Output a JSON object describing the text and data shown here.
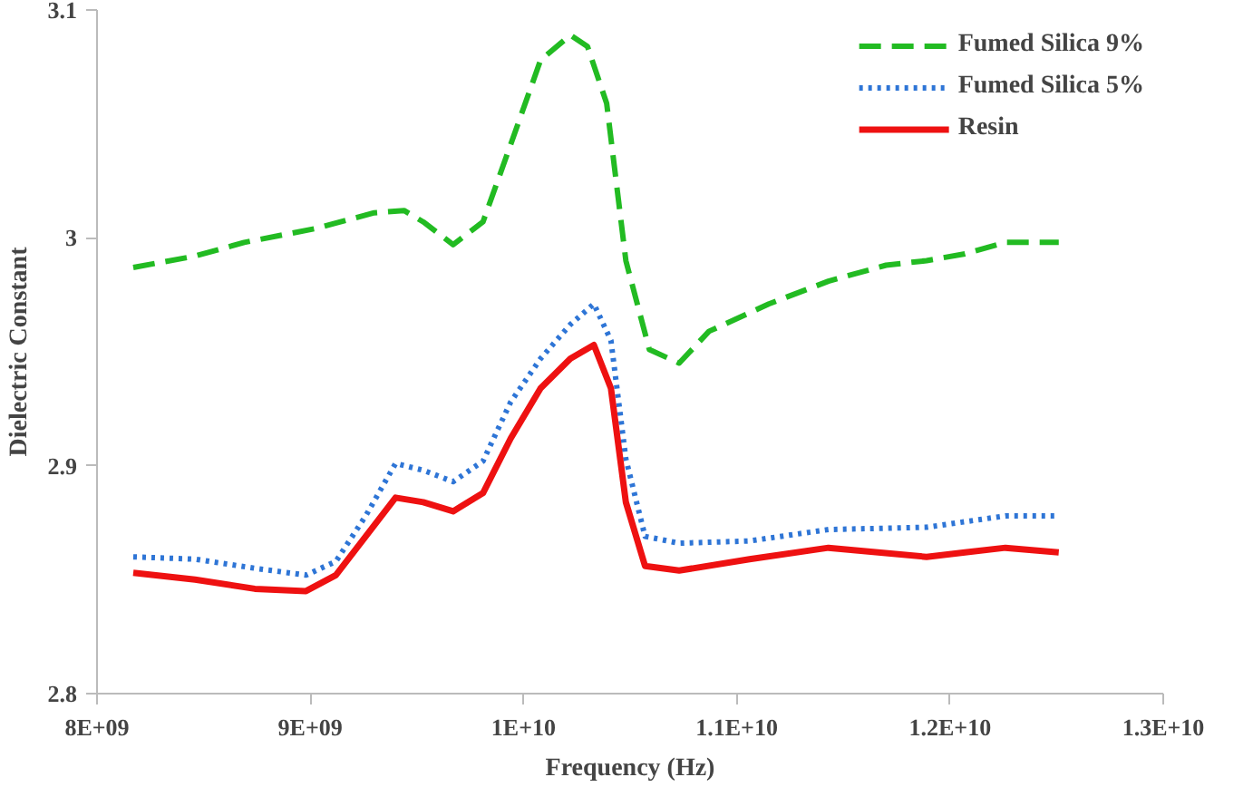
{
  "chart_data": {
    "type": "line",
    "xlabel": "Frequency (Hz)",
    "ylabel": "Dielectric Constant",
    "xlim": [
      8000000000,
      13000000000
    ],
    "ylim": [
      2.8,
      3.1
    ],
    "xticks": [
      {
        "value": 8000000000,
        "label": "8E+09"
      },
      {
        "value": 9000000000,
        "label": "9E+09"
      },
      {
        "value": 10000000000,
        "label": "1E+10"
      },
      {
        "value": 11000000000,
        "label": "1.1E+10"
      },
      {
        "value": 12000000000,
        "label": "1.2E+10"
      },
      {
        "value": 13000000000,
        "label": "1.3E+10"
      }
    ],
    "yticks": [
      2.8,
      2.9,
      3,
      3.1
    ],
    "x": [
      8170000000,
      8460000000,
      8690000000,
      9020000000,
      9300000000,
      9440000000,
      9530000000,
      9670000000,
      9810000000,
      9940000000,
      10080000000,
      10220000000,
      10300000000,
      10390000000,
      10480000000,
      10590000000,
      10730000000,
      10870000000,
      11150000000,
      11430000000,
      11700000000,
      11890000000,
      12070000000,
      12260000000,
      12510000000
    ],
    "grid": false,
    "legend": "top right",
    "marker": "none",
    "series": [
      {
        "name": "Fumed Silica 9%",
        "color": "#22bb22",
        "line_style": "dashed",
        "values": [
          2.987,
          2.992,
          2.998,
          3.004,
          3.011,
          3.012,
          3.007,
          2.997,
          3.007,
          3.041,
          3.078,
          3.089,
          3.084,
          3.059,
          2.99,
          2.951,
          2.945,
          2.959,
          2.971,
          2.981,
          2.988,
          2.99,
          2.993,
          2.998,
          2.998
        ]
      },
      {
        "name": "Fumed Silica 5%",
        "color": "#2e75d6",
        "line_style": "dotted",
        "x": [
          8170000000,
          8460000000,
          8740000000,
          8980000000,
          9120000000,
          9260000000,
          9400000000,
          9530000000,
          9670000000,
          9810000000,
          9940000000,
          10080000000,
          10220000000,
          10330000000,
          10410000000,
          10480000000,
          10570000000,
          10730000000,
          11060000000,
          11430000000,
          11890000000,
          12260000000,
          12510000000
        ],
        "values": [
          2.86,
          2.859,
          2.855,
          2.852,
          2.858,
          2.878,
          2.901,
          2.898,
          2.893,
          2.902,
          2.928,
          2.947,
          2.962,
          2.971,
          2.955,
          2.903,
          2.869,
          2.866,
          2.867,
          2.872,
          2.873,
          2.878,
          2.878
        ]
      },
      {
        "name": "Resin",
        "color": "#ee1111",
        "line_style": "solid",
        "x": [
          8170000000,
          8460000000,
          8740000000,
          8980000000,
          9120000000,
          9260000000,
          9400000000,
          9530000000,
          9670000000,
          9810000000,
          9940000000,
          10080000000,
          10220000000,
          10330000000,
          10410000000,
          10480000000,
          10570000000,
          10730000000,
          11060000000,
          11430000000,
          11890000000,
          12070000000,
          12260000000,
          12510000000
        ],
        "values": [
          2.853,
          2.85,
          2.846,
          2.845,
          2.852,
          2.869,
          2.886,
          2.884,
          2.88,
          2.888,
          2.912,
          2.934,
          2.947,
          2.953,
          2.934,
          2.884,
          2.856,
          2.854,
          2.859,
          2.864,
          2.86,
          2.862,
          2.864,
          2.862
        ]
      }
    ]
  }
}
